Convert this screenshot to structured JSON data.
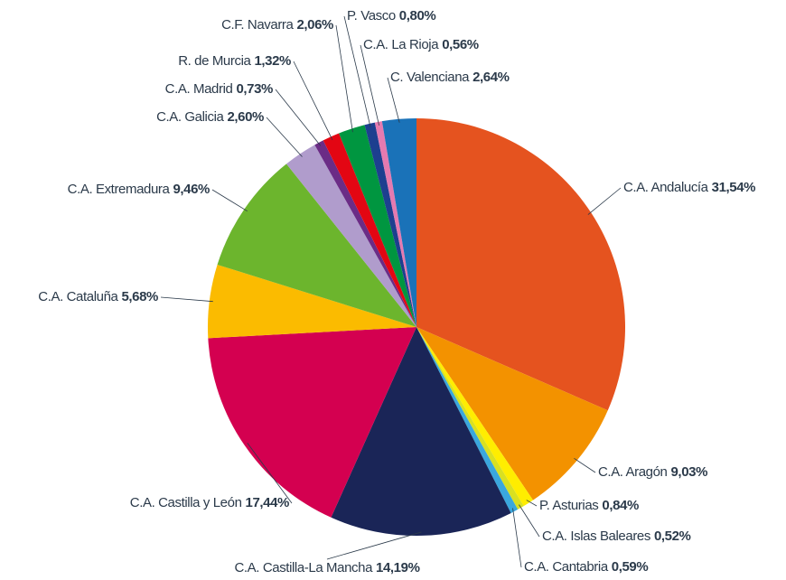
{
  "chart_data": {
    "type": "pie",
    "labels": [
      "C.A. Andalucía",
      "C.A. Aragón",
      "P. Asturias",
      "C.A. Islas Baleares",
      "C.A. Cantabria",
      "C.A. Castilla-La Mancha",
      "C.A. Castilla y León",
      "C.A. Cataluña",
      "C.A. Extremadura",
      "C.A. Galicia",
      "C.A. Madrid",
      "R. de Murcia",
      "C.F. Navarra",
      "P. Vasco",
      "C.A. La Rioja",
      "C. Valenciana"
    ],
    "values": [
      31.54,
      9.03,
      0.84,
      0.52,
      0.59,
      14.19,
      17.44,
      5.68,
      9.46,
      2.6,
      0.73,
      1.32,
      2.06,
      0.8,
      0.56,
      2.64
    ],
    "value_labels": [
      "31,54%",
      "9,03%",
      "0,84%",
      "0,52%",
      "0,59%",
      "14,19%",
      "17,44%",
      "5,68%",
      "9,46%",
      "2,60%",
      "0,73%",
      "1,32%",
      "2,06%",
      "0,80%",
      "0,56%",
      "2,64%"
    ],
    "colors": [
      "#e5531f",
      "#f39200",
      "#ffed00",
      "#d9e021",
      "#3aa7dd",
      "#1a2557",
      "#d40050",
      "#fbbb00",
      "#6cb52d",
      "#b09ccc",
      "#6b2c86",
      "#e30613",
      "#009640",
      "#1d3f8f",
      "#e57ab0",
      "#1a72b8"
    ]
  }
}
